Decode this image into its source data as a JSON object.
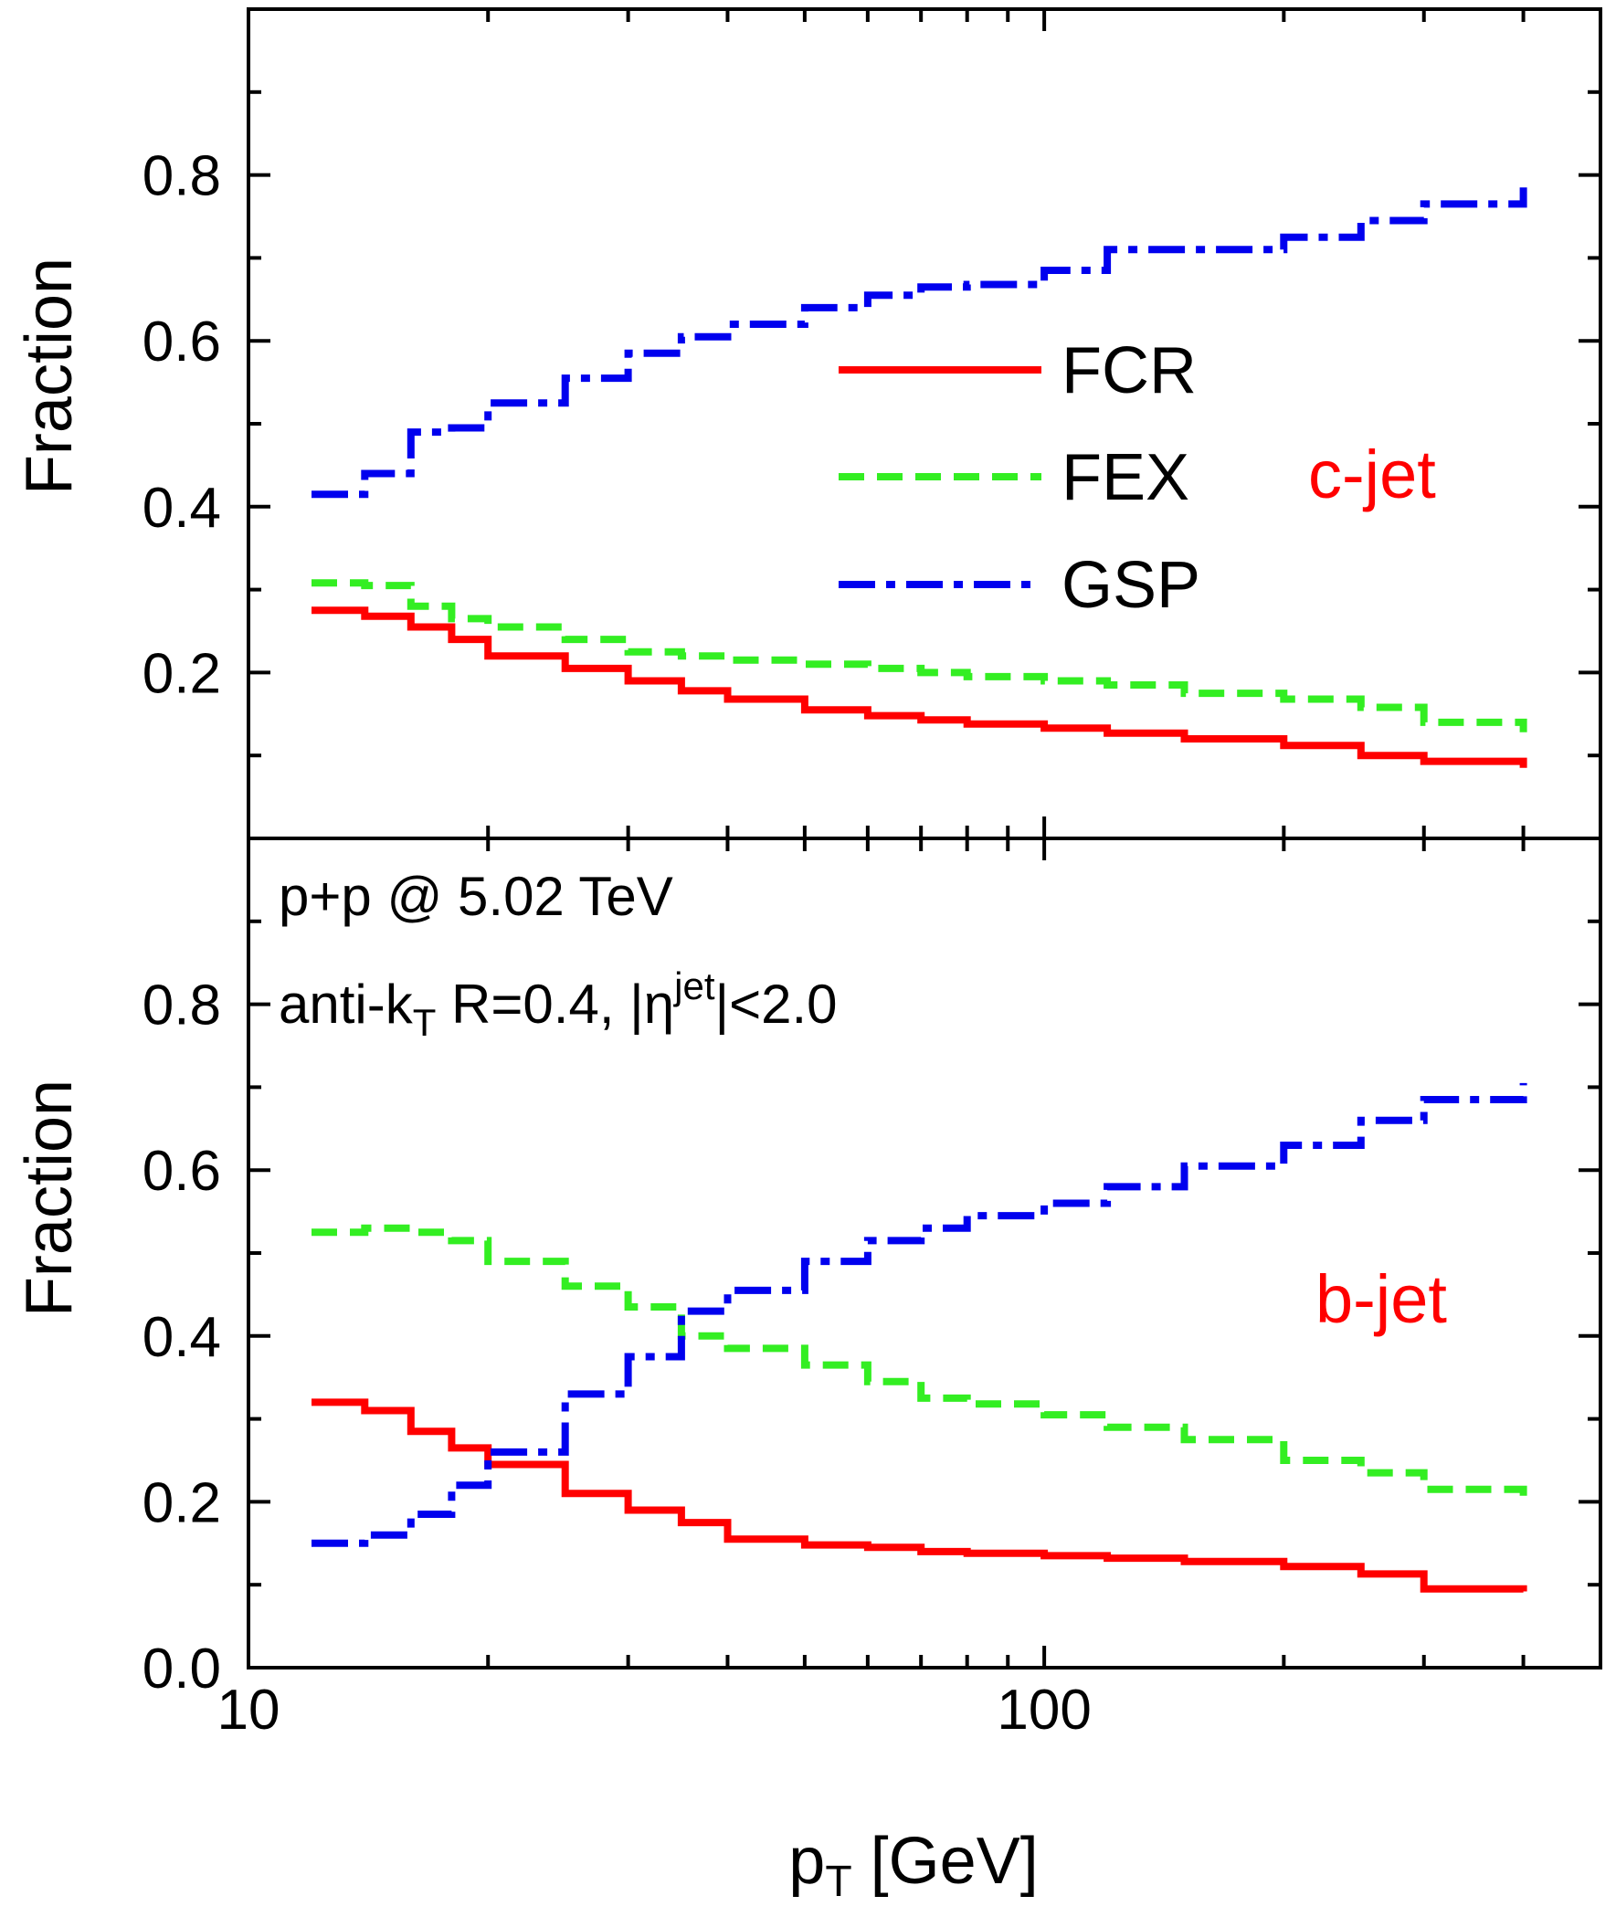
{
  "chart_data": [
    {
      "type": "line",
      "panel": "top",
      "label": "c-jet",
      "ylabel": "Fraction",
      "xlabel": "",
      "xscale": "log",
      "xlim": [
        10,
        500
      ],
      "ylim": [
        0,
        1
      ],
      "yticks": [
        0.2,
        0.4,
        0.6,
        0.8
      ],
      "legend": {
        "position": "center",
        "entries": [
          {
            "name": "FCR",
            "color": "#ff0000",
            "style": "solid"
          },
          {
            "name": "FEX",
            "color": "#33ee22",
            "style": "dashed"
          },
          {
            "name": "GSP",
            "color": "#0000ee",
            "style": "dashdot"
          }
        ]
      },
      "x": [
        12,
        14,
        16,
        18,
        20,
        25,
        30,
        35,
        40,
        50,
        60,
        70,
        80,
        100,
        120,
        150,
        200,
        250,
        300,
        400
      ],
      "series": [
        {
          "name": "FCR",
          "color": "#ff0000",
          "style": "solid",
          "values": [
            0.275,
            0.268,
            0.255,
            0.24,
            0.22,
            0.205,
            0.19,
            0.178,
            0.168,
            0.155,
            0.148,
            0.143,
            0.138,
            0.133,
            0.127,
            0.12,
            0.112,
            0.1,
            0.093,
            0.085
          ]
        },
        {
          "name": "FEX",
          "color": "#33ee22",
          "style": "dashed",
          "values": [
            0.308,
            0.305,
            0.28,
            0.265,
            0.255,
            0.24,
            0.225,
            0.22,
            0.215,
            0.21,
            0.205,
            0.2,
            0.195,
            0.19,
            0.185,
            0.175,
            0.168,
            0.158,
            0.14,
            0.128
          ]
        },
        {
          "name": "GSP",
          "color": "#0000ee",
          "style": "dashdot",
          "values": [
            0.415,
            0.44,
            0.49,
            0.495,
            0.525,
            0.555,
            0.585,
            0.605,
            0.62,
            0.64,
            0.655,
            0.665,
            0.668,
            0.685,
            0.71,
            0.71,
            0.725,
            0.745,
            0.765,
            0.785
          ]
        }
      ]
    },
    {
      "type": "line",
      "panel": "bottom",
      "label": "b-jet",
      "ylabel": "Fraction",
      "xlabel": "p_T [GeV]",
      "xscale": "log",
      "xlim": [
        10,
        500
      ],
      "ylim": [
        0,
        1
      ],
      "yticks": [
        0.0,
        0.2,
        0.4,
        0.6,
        0.8
      ],
      "xticks": [
        10,
        100
      ],
      "x": [
        12,
        14,
        16,
        18,
        20,
        25,
        30,
        35,
        40,
        50,
        60,
        70,
        80,
        100,
        120,
        150,
        200,
        250,
        300,
        400
      ],
      "series": [
        {
          "name": "FCR",
          "color": "#ff0000",
          "style": "solid",
          "values": [
            0.32,
            0.31,
            0.285,
            0.265,
            0.245,
            0.21,
            0.19,
            0.175,
            0.155,
            0.148,
            0.145,
            0.14,
            0.138,
            0.135,
            0.132,
            0.128,
            0.122,
            0.113,
            0.095,
            0.092
          ]
        },
        {
          "name": "FEX",
          "color": "#33ee22",
          "style": "dashed",
          "values": [
            0.525,
            0.53,
            0.525,
            0.515,
            0.49,
            0.46,
            0.435,
            0.4,
            0.385,
            0.365,
            0.345,
            0.325,
            0.318,
            0.305,
            0.29,
            0.275,
            0.25,
            0.235,
            0.215,
            0.198
          ]
        },
        {
          "name": "GSP",
          "color": "#0000ee",
          "style": "dashdot",
          "values": [
            0.15,
            0.16,
            0.185,
            0.22,
            0.26,
            0.33,
            0.375,
            0.43,
            0.455,
            0.49,
            0.515,
            0.53,
            0.545,
            0.56,
            0.58,
            0.605,
            0.63,
            0.66,
            0.685,
            0.705
          ]
        }
      ]
    }
  ],
  "annotations": {
    "line1": "p+p @ 5.02 TeV",
    "line2_prefix": "anti-k",
    "line2_sub": "T",
    "line2_mid": " R=0.4, |η",
    "line2_sup": "jet",
    "line2_suffix": "|<2.0"
  },
  "xaxis": {
    "title_main": "p",
    "title_sub": "T",
    "title_rest": " [GeV]",
    "tick_labels": [
      "10",
      "100"
    ]
  },
  "ytick_labels_top": [
    "0.2",
    "0.4",
    "0.6",
    "0.8"
  ],
  "ytick_labels_bottom": [
    "0.0",
    "0.2",
    "0.4",
    "0.6",
    "0.8"
  ]
}
